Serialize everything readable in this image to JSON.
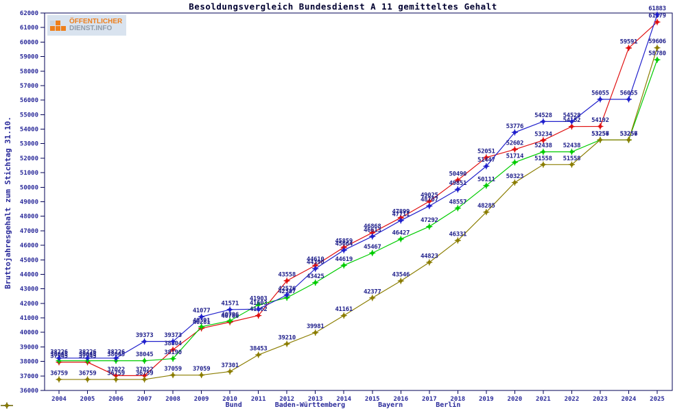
{
  "title": "Besoldungsvergleich Bundesdienst A 11 gemitteltes Gehalt",
  "logo": {
    "line1": "ÖFFENTLICHER",
    "line2": "DIENST.INFO"
  },
  "colors": {
    "axis": "#000055",
    "tick_text": "#2a2a9a",
    "label_text": "#22228c",
    "background": "#ffffff"
  },
  "chart_data": {
    "type": "line",
    "title": "Besoldungsvergleich Bundesdienst A 11 gemitteltes Gehalt",
    "xlabel": "",
    "ylabel": "Bruttojahresgehalt zum Stichtag 31.10.",
    "ylim": [
      36000,
      62000
    ],
    "ytick_step": 1000,
    "grid": false,
    "legend_position": "bottom",
    "point_labels": true,
    "x": [
      2004,
      2005,
      2006,
      2007,
      2008,
      2009,
      2010,
      2011,
      2012,
      2013,
      2014,
      2015,
      2016,
      2017,
      2018,
      2019,
      2020,
      2021,
      2022,
      2023,
      2024,
      2025
    ],
    "series": [
      {
        "name": "Bund",
        "color": "#e01010",
        "values": [
          37945,
          37945,
          37022,
          37022,
          38804,
          40281,
          40706,
          41162,
          43558,
          44610,
          45859,
          46868,
          47899,
          49025,
          50490,
          52051,
          52602,
          53234,
          54182,
          54192,
          59591,
          61379
        ]
      },
      {
        "name": "Baden-Württemberg",
        "color": "#00cc00",
        "values": [
          38045,
          38045,
          38045,
          38045,
          38190,
          40391,
          40796,
          41903,
          42387,
          43425,
          44619,
          45467,
          46427,
          47292,
          48557,
          50111,
          51714,
          52438,
          52438,
          53256,
          53256,
          58780
        ]
      },
      {
        "name": "Bayern",
        "color": "#2020cc",
        "values": [
          38226,
          38226,
          38226,
          39373,
          39373,
          41077,
          41571,
          41603,
          42576,
          44390,
          45664,
          46613,
          47711,
          48707,
          49851,
          51447,
          53776,
          54528,
          54528,
          56055,
          56055,
          61883
        ]
      },
      {
        "name": "Berlin",
        "color": "#8b7d00",
        "values": [
          36759,
          36759,
          36759,
          36759,
          37059,
          37059,
          37301,
          38453,
          39210,
          39981,
          41161,
          42377,
          43546,
          44823,
          46331,
          48285,
          50323,
          51558,
          51558,
          53257,
          53257,
          59606
        ]
      }
    ]
  }
}
